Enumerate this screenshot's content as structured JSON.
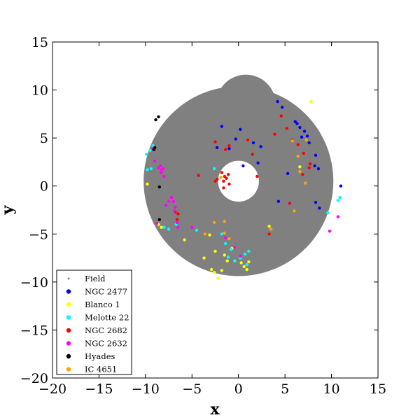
{
  "chart_data": {
    "type": "scatter",
    "title": "",
    "xlabel": "x",
    "ylabel": "y",
    "xlim": [
      -20,
      15
    ],
    "ylim": [
      -20,
      15
    ],
    "xticks": [
      -20,
      -15,
      -10,
      -5,
      0,
      5,
      10,
      15
    ],
    "yticks": [
      -20,
      -15,
      -10,
      -5,
      0,
      5,
      10,
      15
    ],
    "xtick_labels": [
      "−20",
      "−15",
      "−10",
      "−5",
      "0",
      "5",
      "10",
      "15"
    ],
    "ytick_labels": [
      "−20",
      "−15",
      "−10",
      "−5",
      "0",
      "5",
      "10",
      "15"
    ],
    "grid": false,
    "legend_position": "lower-left",
    "field": {
      "name": "Field",
      "color": "#808080",
      "ring_center": [
        0,
        0.5
      ],
      "ring_outer_radius": 10.2,
      "ring_inner_radius": 2.2,
      "blob_center": [
        0.8,
        8.5
      ],
      "blob_radius": 3.2
    },
    "series": [
      {
        "name": "NGC 2477",
        "color": "#0000ff",
        "points": [
          [
            4.2,
            8.8
          ],
          [
            4.7,
            8.2
          ],
          [
            6.1,
            6.7
          ],
          [
            6.3,
            6.5
          ],
          [
            6.6,
            6.1
          ],
          [
            7.1,
            5.7
          ],
          [
            7.4,
            5.2
          ],
          [
            7.6,
            4.5
          ],
          [
            6.8,
            5.1
          ],
          [
            8.3,
            3.2
          ],
          [
            8.2,
            2.1
          ],
          [
            8.6,
            1.8
          ],
          [
            -2.3,
            4.0
          ],
          [
            -1.8,
            6.2
          ],
          [
            -1.0,
            3.9
          ],
          [
            -0.3,
            4.9
          ],
          [
            0.2,
            5.9
          ],
          [
            1.6,
            4.5
          ],
          [
            2.4,
            4.1
          ],
          [
            2.1,
            2.4
          ],
          [
            0.5,
            2.1
          ],
          [
            5.3,
            1.3
          ],
          [
            4.3,
            -1.6
          ],
          [
            8.3,
            -1.7
          ],
          [
            8.7,
            -2.3
          ],
          [
            11.0,
            0.0
          ]
        ]
      },
      {
        "name": "Blanco 1",
        "color": "#ffff00",
        "points": [
          [
            -9.8,
            0.2
          ],
          [
            -8.6,
            -4.0
          ],
          [
            -8.3,
            -4.3
          ],
          [
            -5.8,
            -5.6
          ],
          [
            -3.1,
            -5.1
          ],
          [
            -3.7,
            -7.5
          ],
          [
            -2.9,
            -8.7
          ],
          [
            -2.6,
            -9.0
          ],
          [
            -2.2,
            -9.6
          ],
          [
            -1.8,
            -8.8
          ],
          [
            -1.5,
            -7.2
          ],
          [
            -2.5,
            -6.8
          ],
          [
            -1.2,
            -7.8
          ],
          [
            -0.7,
            -6.5
          ],
          [
            0.3,
            -8.0
          ],
          [
            0.6,
            -8.4
          ],
          [
            0.9,
            -8.7
          ],
          [
            1.1,
            -7.9
          ],
          [
            3.3,
            -4.2
          ],
          [
            6.6,
            2.0
          ],
          [
            7.8,
            8.8
          ]
        ]
      },
      {
        "name": "Melotte 22",
        "color": "#00ffff",
        "points": [
          [
            -9.9,
            3.3
          ],
          [
            -9.5,
            3.7
          ],
          [
            -9.2,
            4.2
          ],
          [
            -9.4,
            1.8
          ],
          [
            -9.8,
            1.7
          ],
          [
            -8.0,
            -4.3
          ],
          [
            -7.5,
            -4.5
          ],
          [
            -6.7,
            -4.0
          ],
          [
            -4.5,
            -4.6
          ],
          [
            -2.6,
            1.8
          ],
          [
            -1.8,
            -5.0
          ],
          [
            -1.4,
            -6.0
          ],
          [
            -0.8,
            -6.6
          ],
          [
            -1.1,
            -7.4
          ],
          [
            -0.4,
            -7.8
          ],
          [
            0.2,
            -7.5
          ],
          [
            0.7,
            -7.1
          ],
          [
            0.9,
            -8.2
          ],
          [
            1.1,
            -6.8
          ],
          [
            9.6,
            -2.8
          ],
          [
            10.7,
            -1.5
          ],
          [
            10.9,
            -1.2
          ]
        ]
      },
      {
        "name": "NGC 2682",
        "color": "#ff0000",
        "points": [
          [
            4.6,
            7.3
          ],
          [
            3.9,
            5.4
          ],
          [
            5.2,
            6.0
          ],
          [
            5.8,
            4.8
          ],
          [
            6.4,
            4.3
          ],
          [
            7.0,
            3.4
          ],
          [
            7.7,
            2.3
          ],
          [
            7.6,
            1.9
          ],
          [
            6.9,
            1.2
          ],
          [
            -2.5,
            4.6
          ],
          [
            -1.4,
            3.8
          ],
          [
            -1.0,
            4.2
          ],
          [
            1.0,
            4.8
          ],
          [
            1.5,
            3.3
          ],
          [
            -1.8,
            1.4
          ],
          [
            -1.5,
            1.0
          ],
          [
            -1.1,
            1.2
          ],
          [
            -2.5,
            0.5
          ],
          [
            -2.3,
            0.7
          ],
          [
            -1.6,
            0.5
          ],
          [
            -1.3,
            0.8
          ],
          [
            -1.0,
            0.2
          ],
          [
            -1.6,
            -0.2
          ],
          [
            -4.3,
            1.1
          ],
          [
            -6.6,
            -3.5
          ],
          [
            -6.8,
            -2.7
          ],
          [
            -6.5,
            -2.9
          ],
          [
            2.0,
            1.0
          ],
          [
            5.5,
            -1.8
          ],
          [
            3.3,
            -5.0
          ]
        ]
      },
      {
        "name": "NGC 2632",
        "color": "#ff00ff",
        "points": [
          [
            -9.2,
            3.9
          ],
          [
            -9.0,
            2.6
          ],
          [
            -8.6,
            1.9
          ],
          [
            -8.3,
            1.7
          ],
          [
            -8.4,
            2.1
          ],
          [
            -8.1,
            1.8
          ],
          [
            -8.3,
            1.4
          ],
          [
            -8.0,
            1.0
          ],
          [
            -8.8,
            -3.9
          ],
          [
            -7.8,
            -2.0
          ],
          [
            -7.5,
            -1.6
          ],
          [
            -7.2,
            -1.2
          ],
          [
            -7.0,
            -1.6
          ],
          [
            -6.8,
            -2.2
          ],
          [
            -6.9,
            -2.6
          ],
          [
            -6.6,
            -3.8
          ],
          [
            -6.5,
            -4.3
          ],
          [
            -5.0,
            -4.3
          ],
          [
            -1.4,
            -5.4
          ],
          [
            -0.4,
            -6.4
          ],
          [
            0.2,
            -7.3
          ],
          [
            9.8,
            -4.7
          ],
          [
            10.7,
            -3.2
          ]
        ]
      },
      {
        "name": "Hyades",
        "color": "#000000",
        "points": [
          [
            -8.9,
            6.9
          ],
          [
            -8.6,
            7.2
          ],
          [
            -9.0,
            4.0
          ],
          [
            -9.1,
            3.8
          ],
          [
            -8.5,
            -0.1
          ],
          [
            -8.5,
            -3.5
          ]
        ]
      },
      {
        "name": "IC 4651",
        "color": "#ffa500",
        "points": [
          [
            5.8,
            4.7
          ],
          [
            7.3,
            4.8
          ],
          [
            6.4,
            3.1
          ],
          [
            6.6,
            1.5
          ],
          [
            7.2,
            0.3
          ],
          [
            6.0,
            -2.6
          ],
          [
            -1.5,
            -3.7
          ],
          [
            -1.5,
            -4.9
          ],
          [
            -2.6,
            -3.8
          ],
          [
            -3.6,
            -5.0
          ],
          [
            -1.0,
            -5.5
          ],
          [
            3.5,
            -4.5
          ],
          [
            -1.9,
            0.9
          ]
        ]
      }
    ]
  }
}
